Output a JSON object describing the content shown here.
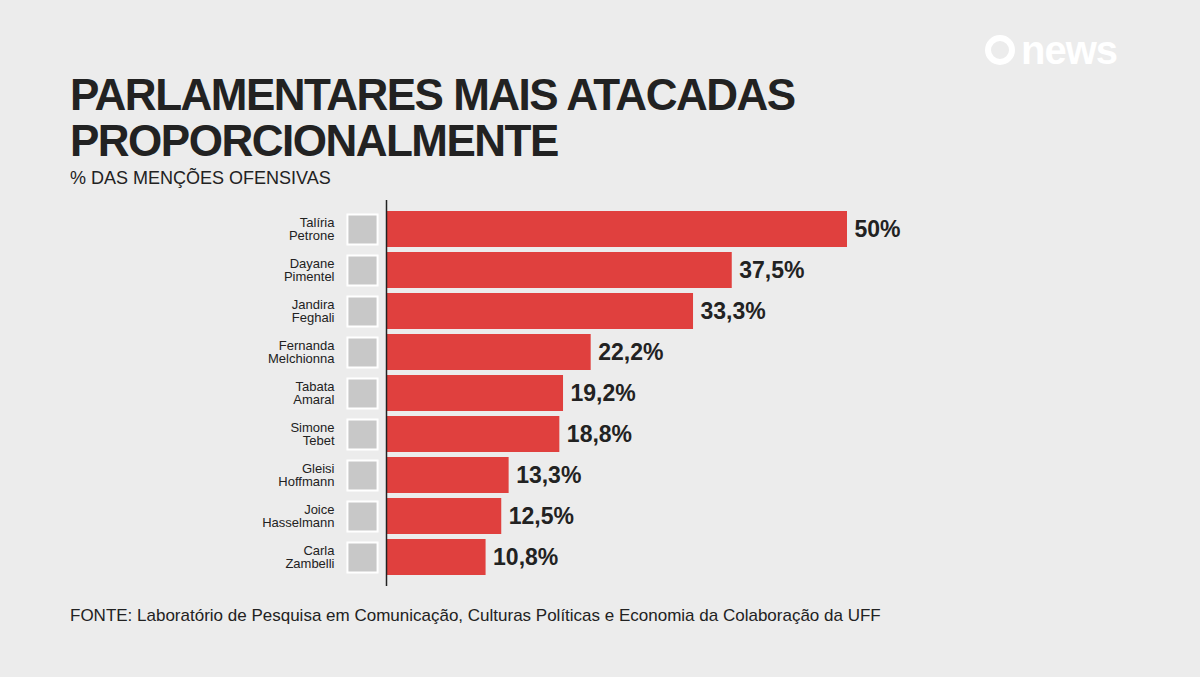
{
  "chart_data": {
    "type": "bar",
    "orientation": "horizontal",
    "title": "PARLAMENTARES MAIS ATACADAS PROPORCIONALMENTE",
    "subtitle": "% DAS MENÇÕES OFENSIVAS",
    "source": "FONTE: Laboratório de Pesquisa em Comunicação, Culturas Políticas e Economia da Colaboração da UFF",
    "logo": "news",
    "categories": [
      "Talíria Petrone",
      "Dayane Pimentel",
      "Jandira Feghali",
      "Fernanda Melchionna",
      "Tabata Amaral",
      "Simone Tebet",
      "Gleisi Hoffmann",
      "Joice Hasselmann",
      "Carla Zambelli"
    ],
    "values": [
      50,
      37.5,
      33.3,
      22.2,
      19.2,
      18.8,
      13.3,
      12.5,
      10.8
    ],
    "value_labels": [
      "50%",
      "37,5%",
      "33,3%",
      "22,2%",
      "19,2%",
      "18,8%",
      "13,3%",
      "12,5%",
      "10,8%"
    ],
    "color": "#e0403e",
    "xlim": [
      0,
      50
    ],
    "data_labels": true,
    "tick_labels": "y",
    "grid": false
  }
}
